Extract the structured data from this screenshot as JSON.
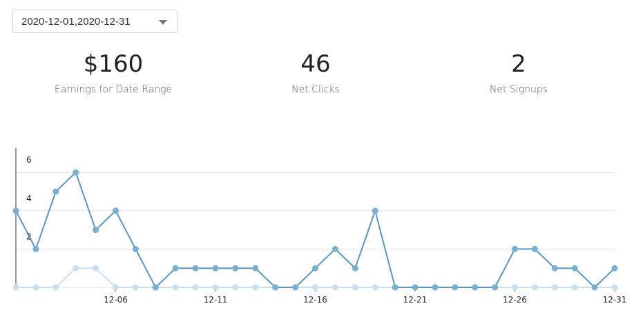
{
  "date_range": {
    "value": "2020-12-01,2020-12-31"
  },
  "stats": [
    {
      "value": "$160",
      "label": "Earnings for Date Range"
    },
    {
      "value": "46",
      "label": "Net Clicks"
    },
    {
      "value": "2",
      "label": "Net Signups"
    }
  ],
  "colors": {
    "clicks": "#5b96ba",
    "clicks_point": "#7aafcf",
    "signups": "#c9dfee",
    "grid": "#e3e3e3",
    "axis": "#333333"
  },
  "chart_data": {
    "type": "line",
    "x": [
      "12-01",
      "12-02",
      "12-03",
      "12-04",
      "12-05",
      "12-06",
      "12-07",
      "12-08",
      "12-09",
      "12-10",
      "12-11",
      "12-12",
      "12-13",
      "12-14",
      "12-15",
      "12-16",
      "12-17",
      "12-18",
      "12-19",
      "12-20",
      "12-21",
      "12-22",
      "12-23",
      "12-24",
      "12-25",
      "12-26",
      "12-27",
      "12-28",
      "12-29",
      "12-30",
      "12-31"
    ],
    "x_tick_labels": [
      "12-06",
      "12-11",
      "12-16",
      "12-21",
      "12-26",
      "12-31"
    ],
    "y_tick_labels": [
      "2",
      "4",
      "6"
    ],
    "ylim": [
      0,
      6
    ],
    "grid": true,
    "series": [
      {
        "values": [
          4,
          2,
          5,
          6,
          3,
          4,
          2,
          0,
          1,
          1,
          1,
          1,
          1,
          0,
          0,
          1,
          2,
          1,
          4,
          0,
          0,
          0,
          0,
          0,
          0,
          2,
          2,
          1,
          1,
          0,
          1
        ]
      },
      {
        "values": [
          0,
          0,
          0,
          1,
          1,
          0,
          0,
          0,
          0,
          0,
          0,
          0,
          0,
          0,
          0,
          0,
          0,
          0,
          0,
          0,
          0,
          0,
          0,
          0,
          0,
          0,
          0,
          0,
          0,
          0,
          0
        ]
      }
    ]
  }
}
